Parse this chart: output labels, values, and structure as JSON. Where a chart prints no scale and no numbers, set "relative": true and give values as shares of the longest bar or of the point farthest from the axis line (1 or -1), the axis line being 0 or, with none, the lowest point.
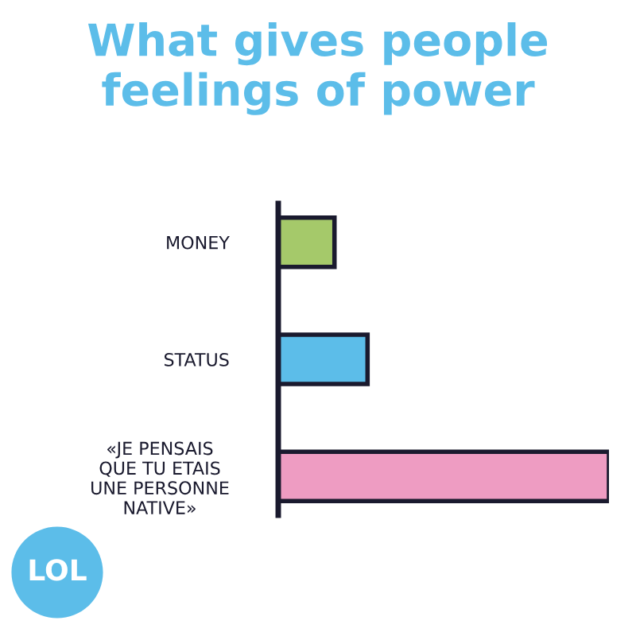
{
  "chart_data": {
    "type": "bar",
    "orientation": "horizontal",
    "relative": true,
    "title": "What gives people\nfeelings of power",
    "categories": [
      "MONEY",
      "STATUS",
      "«JE PENSAIS\nQUE TU ETAIS\nUNE PERSONNE\nNATIVE»"
    ],
    "values": [
      0.17,
      0.27,
      1.0
    ],
    "colors": [
      "#a5c96a",
      "#5cbde9",
      "#ee9cc2"
    ],
    "annotations": [
      "LOL"
    ],
    "grid": false,
    "legend": false
  }
}
